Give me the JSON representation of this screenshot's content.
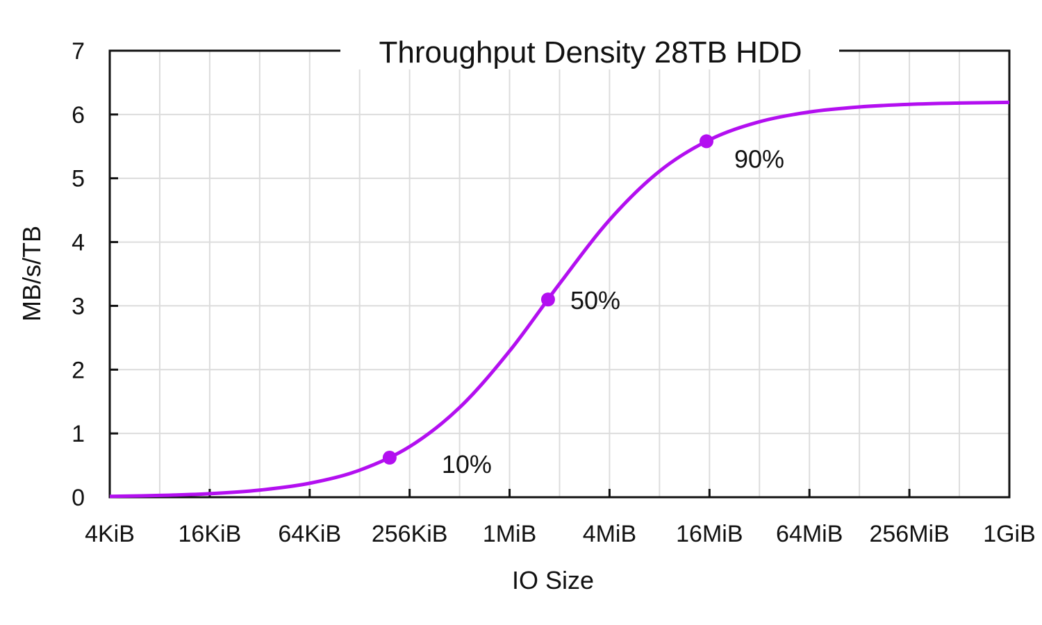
{
  "chart_data": {
    "type": "line",
    "title": "Throughput Density 28TB HDD",
    "xlabel": "IO Size",
    "ylabel": "MB/s/TB",
    "x_scale": "log2",
    "x_unit": "KiB",
    "xlim": [
      4,
      1048576
    ],
    "ylim": [
      0,
      7
    ],
    "yticks": [
      0,
      1,
      2,
      3,
      4,
      5,
      6,
      7
    ],
    "xticks": [
      {
        "value": 4,
        "label": "4KiB"
      },
      {
        "value": 16,
        "label": "16KiB"
      },
      {
        "value": 64,
        "label": "64KiB"
      },
      {
        "value": 256,
        "label": "256KiB"
      },
      {
        "value": 1024,
        "label": "1MiB"
      },
      {
        "value": 4096,
        "label": "4MiB"
      },
      {
        "value": 16384,
        "label": "16MiB"
      },
      {
        "value": 65536,
        "label": "64MiB"
      },
      {
        "value": 262144,
        "label": "256MiB"
      },
      {
        "value": 1048576,
        "label": "1GiB"
      }
    ],
    "grid": true,
    "color": "#b30ff0",
    "series": [
      {
        "x": [
          4,
          8,
          16,
          32,
          64,
          128,
          256,
          512,
          1024,
          2048,
          4096,
          8192,
          16384,
          32768,
          65536,
          131072,
          262144,
          524288,
          1048576
        ],
        "y": [
          0.014,
          0.028,
          0.056,
          0.112,
          0.219,
          0.424,
          0.793,
          1.406,
          2.292,
          3.347,
          4.347,
          5.111,
          5.603,
          5.886,
          6.039,
          6.118,
          6.159,
          6.179,
          6.19
        ]
      }
    ],
    "markers": [
      {
        "x": 194,
        "y": 0.62,
        "label": "10%"
      },
      {
        "x": 1746,
        "y": 3.1,
        "label": "50%"
      },
      {
        "x": 15714,
        "y": 5.58,
        "label": "90%"
      }
    ]
  }
}
